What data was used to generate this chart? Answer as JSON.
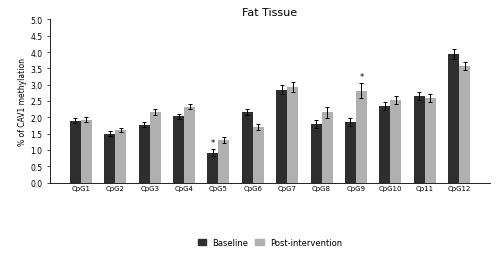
{
  "title": "Fat Tissue",
  "ylabel": "% of CAV1 methylation",
  "categories": [
    "CpG1",
    "CpG2",
    "CpG3",
    "CpG4",
    "CpG5",
    "CpG6",
    "CpG7",
    "CpG8",
    "CpG9",
    "CpG10",
    "Cp11",
    "CpG12"
  ],
  "baseline": [
    1.9,
    1.5,
    1.78,
    2.03,
    0.92,
    2.15,
    2.85,
    1.8,
    1.85,
    2.35,
    2.65,
    3.95
  ],
  "postint": [
    1.93,
    1.62,
    2.17,
    2.33,
    1.3,
    1.7,
    2.92,
    2.15,
    2.82,
    2.53,
    2.58,
    3.57
  ],
  "baseline_err": [
    0.07,
    0.07,
    0.08,
    0.08,
    0.1,
    0.09,
    0.15,
    0.13,
    0.12,
    0.12,
    0.12,
    0.15
  ],
  "postint_err": [
    0.07,
    0.06,
    0.09,
    0.07,
    0.1,
    0.1,
    0.15,
    0.18,
    0.22,
    0.12,
    0.12,
    0.13
  ],
  "star_baseline_idx": 4,
  "star_postint_idx": 8,
  "baseline_color": "#2e2e2e",
  "postint_color": "#b0b0b0",
  "ylim": [
    0.0,
    5.0
  ],
  "yticks": [
    0.0,
    0.5,
    1.0,
    1.5,
    2.0,
    2.5,
    3.0,
    3.5,
    4.0,
    4.5,
    5.0
  ],
  "bar_width": 0.32,
  "legend_labels": [
    "Baseline",
    "Post-intervention"
  ],
  "figsize": [
    5.0,
    2.55
  ],
  "dpi": 100
}
